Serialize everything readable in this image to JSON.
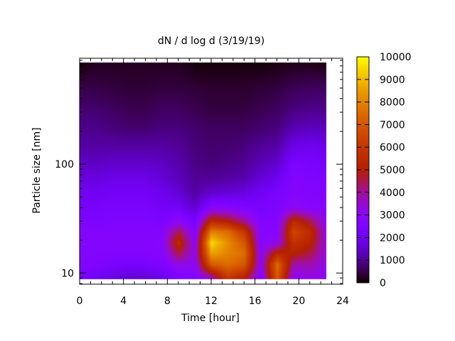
{
  "chart_data": {
    "type": "heatmap",
    "title": "dN / d log d (3/19/19)",
    "xlabel": "Time [hour]",
    "ylabel": "Particle size [nm]",
    "xlim": [
      0,
      24
    ],
    "ylim": [
      7.9,
      940
    ],
    "yscale": "log",
    "xticks": [
      0,
      4,
      8,
      12,
      16,
      20,
      24
    ],
    "yticks": [
      10,
      100
    ],
    "colorbar": {
      "range": [
        0,
        10000
      ],
      "ticks": [
        0,
        1000,
        2000,
        3000,
        4000,
        5000,
        6000,
        7000,
        8000,
        9000,
        10000
      ],
      "colormap": "black-purple-red-yellow"
    },
    "time_hours": [
      0,
      1.5,
      3,
      4.5,
      6,
      7.5,
      9,
      10.5,
      12,
      13.5,
      15,
      16.5,
      18,
      19.5,
      21,
      22.5
    ],
    "size_nm": [
      9,
      12,
      15,
      19,
      24,
      30,
      40,
      55,
      75,
      100,
      150,
      220,
      330,
      500,
      850
    ],
    "values": [
      [
        2200,
        2000,
        1700,
        1500,
        1500,
        1800,
        2400,
        2600,
        3500,
        6000,
        5000,
        2600,
        7000,
        3000,
        3200,
        3000
      ],
      [
        2600,
        2500,
        2300,
        2200,
        2300,
        2500,
        3200,
        3000,
        7000,
        7500,
        7000,
        3000,
        7500,
        3800,
        3800,
        3200
      ],
      [
        2700,
        2600,
        2600,
        2600,
        2600,
        2700,
        4500,
        3200,
        8500,
        8000,
        7500,
        3000,
        5500,
        5000,
        4500,
        3300
      ],
      [
        2700,
        2700,
        2700,
        2700,
        2700,
        2800,
        5500,
        3000,
        9500,
        8200,
        7000,
        2800,
        3200,
        5800,
        5200,
        3300
      ],
      [
        2600,
        2600,
        2600,
        2600,
        2600,
        2700,
        4500,
        2700,
        8000,
        7500,
        6000,
        2700,
        2800,
        6500,
        5500,
        3200
      ],
      [
        2400,
        2400,
        2500,
        2500,
        2500,
        2400,
        3000,
        2300,
        5500,
        5000,
        4000,
        2600,
        2700,
        5500,
        4500,
        3000
      ],
      [
        2200,
        2200,
        2300,
        2300,
        2300,
        2100,
        2100,
        1500,
        2800,
        2800,
        2500,
        2300,
        2500,
        3000,
        2800,
        2800
      ],
      [
        2000,
        2000,
        2100,
        2100,
        2100,
        1900,
        1600,
        1100,
        1500,
        1600,
        1700,
        2000,
        2300,
        2700,
        2600,
        2600
      ],
      [
        1700,
        1700,
        1800,
        1800,
        1800,
        1600,
        1300,
        1000,
        1000,
        1100,
        1200,
        1600,
        1900,
        2600,
        2500,
        2400
      ],
      [
        1400,
        1400,
        1500,
        1500,
        1500,
        1400,
        1200,
        900,
        800,
        900,
        1000,
        1300,
        1500,
        2400,
        2300,
        2200
      ],
      [
        1100,
        1100,
        1100,
        1100,
        1100,
        1100,
        1000,
        800,
        700,
        700,
        800,
        1000,
        1100,
        1800,
        1900,
        1800
      ],
      [
        900,
        900,
        800,
        700,
        700,
        800,
        800,
        700,
        600,
        600,
        600,
        700,
        800,
        1200,
        1300,
        1300
      ],
      [
        700,
        700,
        600,
        500,
        500,
        600,
        600,
        500,
        400,
        400,
        400,
        500,
        600,
        800,
        900,
        900
      ],
      [
        450,
        450,
        400,
        350,
        350,
        400,
        400,
        350,
        300,
        300,
        300,
        350,
        400,
        550,
        600,
        600
      ],
      [
        50,
        200,
        200,
        200,
        200,
        200,
        200,
        50,
        50,
        50,
        50,
        50,
        100,
        150,
        150,
        100
      ]
    ]
  }
}
